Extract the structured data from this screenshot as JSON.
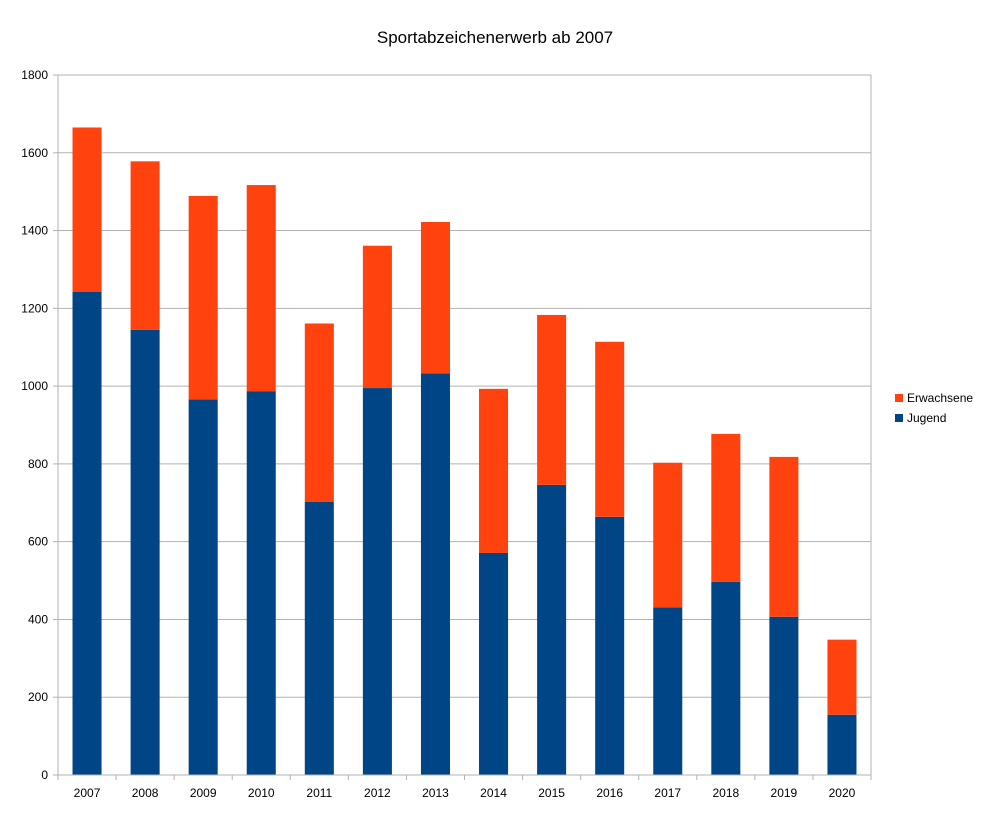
{
  "chart_data": {
    "type": "bar",
    "stacked": true,
    "title": "Sportabzeichenerwerb ab 2007",
    "xlabel": "",
    "ylabel": "",
    "categories": [
      "2007",
      "2008",
      "2009",
      "2010",
      "2011",
      "2012",
      "2013",
      "2014",
      "2015",
      "2016",
      "2017",
      "2018",
      "2019",
      "2020"
    ],
    "ylim": [
      0,
      1800
    ],
    "yticks": [
      0,
      200,
      400,
      600,
      800,
      1000,
      1200,
      1400,
      1600,
      1800
    ],
    "grid": true,
    "legend_position": "right",
    "series": [
      {
        "name": "Jugend",
        "color": "#004586",
        "values": [
          1242,
          1145,
          966,
          987,
          702,
          995,
          1033,
          571,
          746,
          664,
          431,
          497,
          407,
          155
        ]
      },
      {
        "name": "Erwachsene",
        "color": "#ff420e",
        "values": [
          423,
          433,
          523,
          530,
          459,
          366,
          389,
          422,
          437,
          450,
          372,
          380,
          411,
          193
        ]
      }
    ],
    "legend_order": [
      "Erwachsene",
      "Jugend"
    ]
  }
}
